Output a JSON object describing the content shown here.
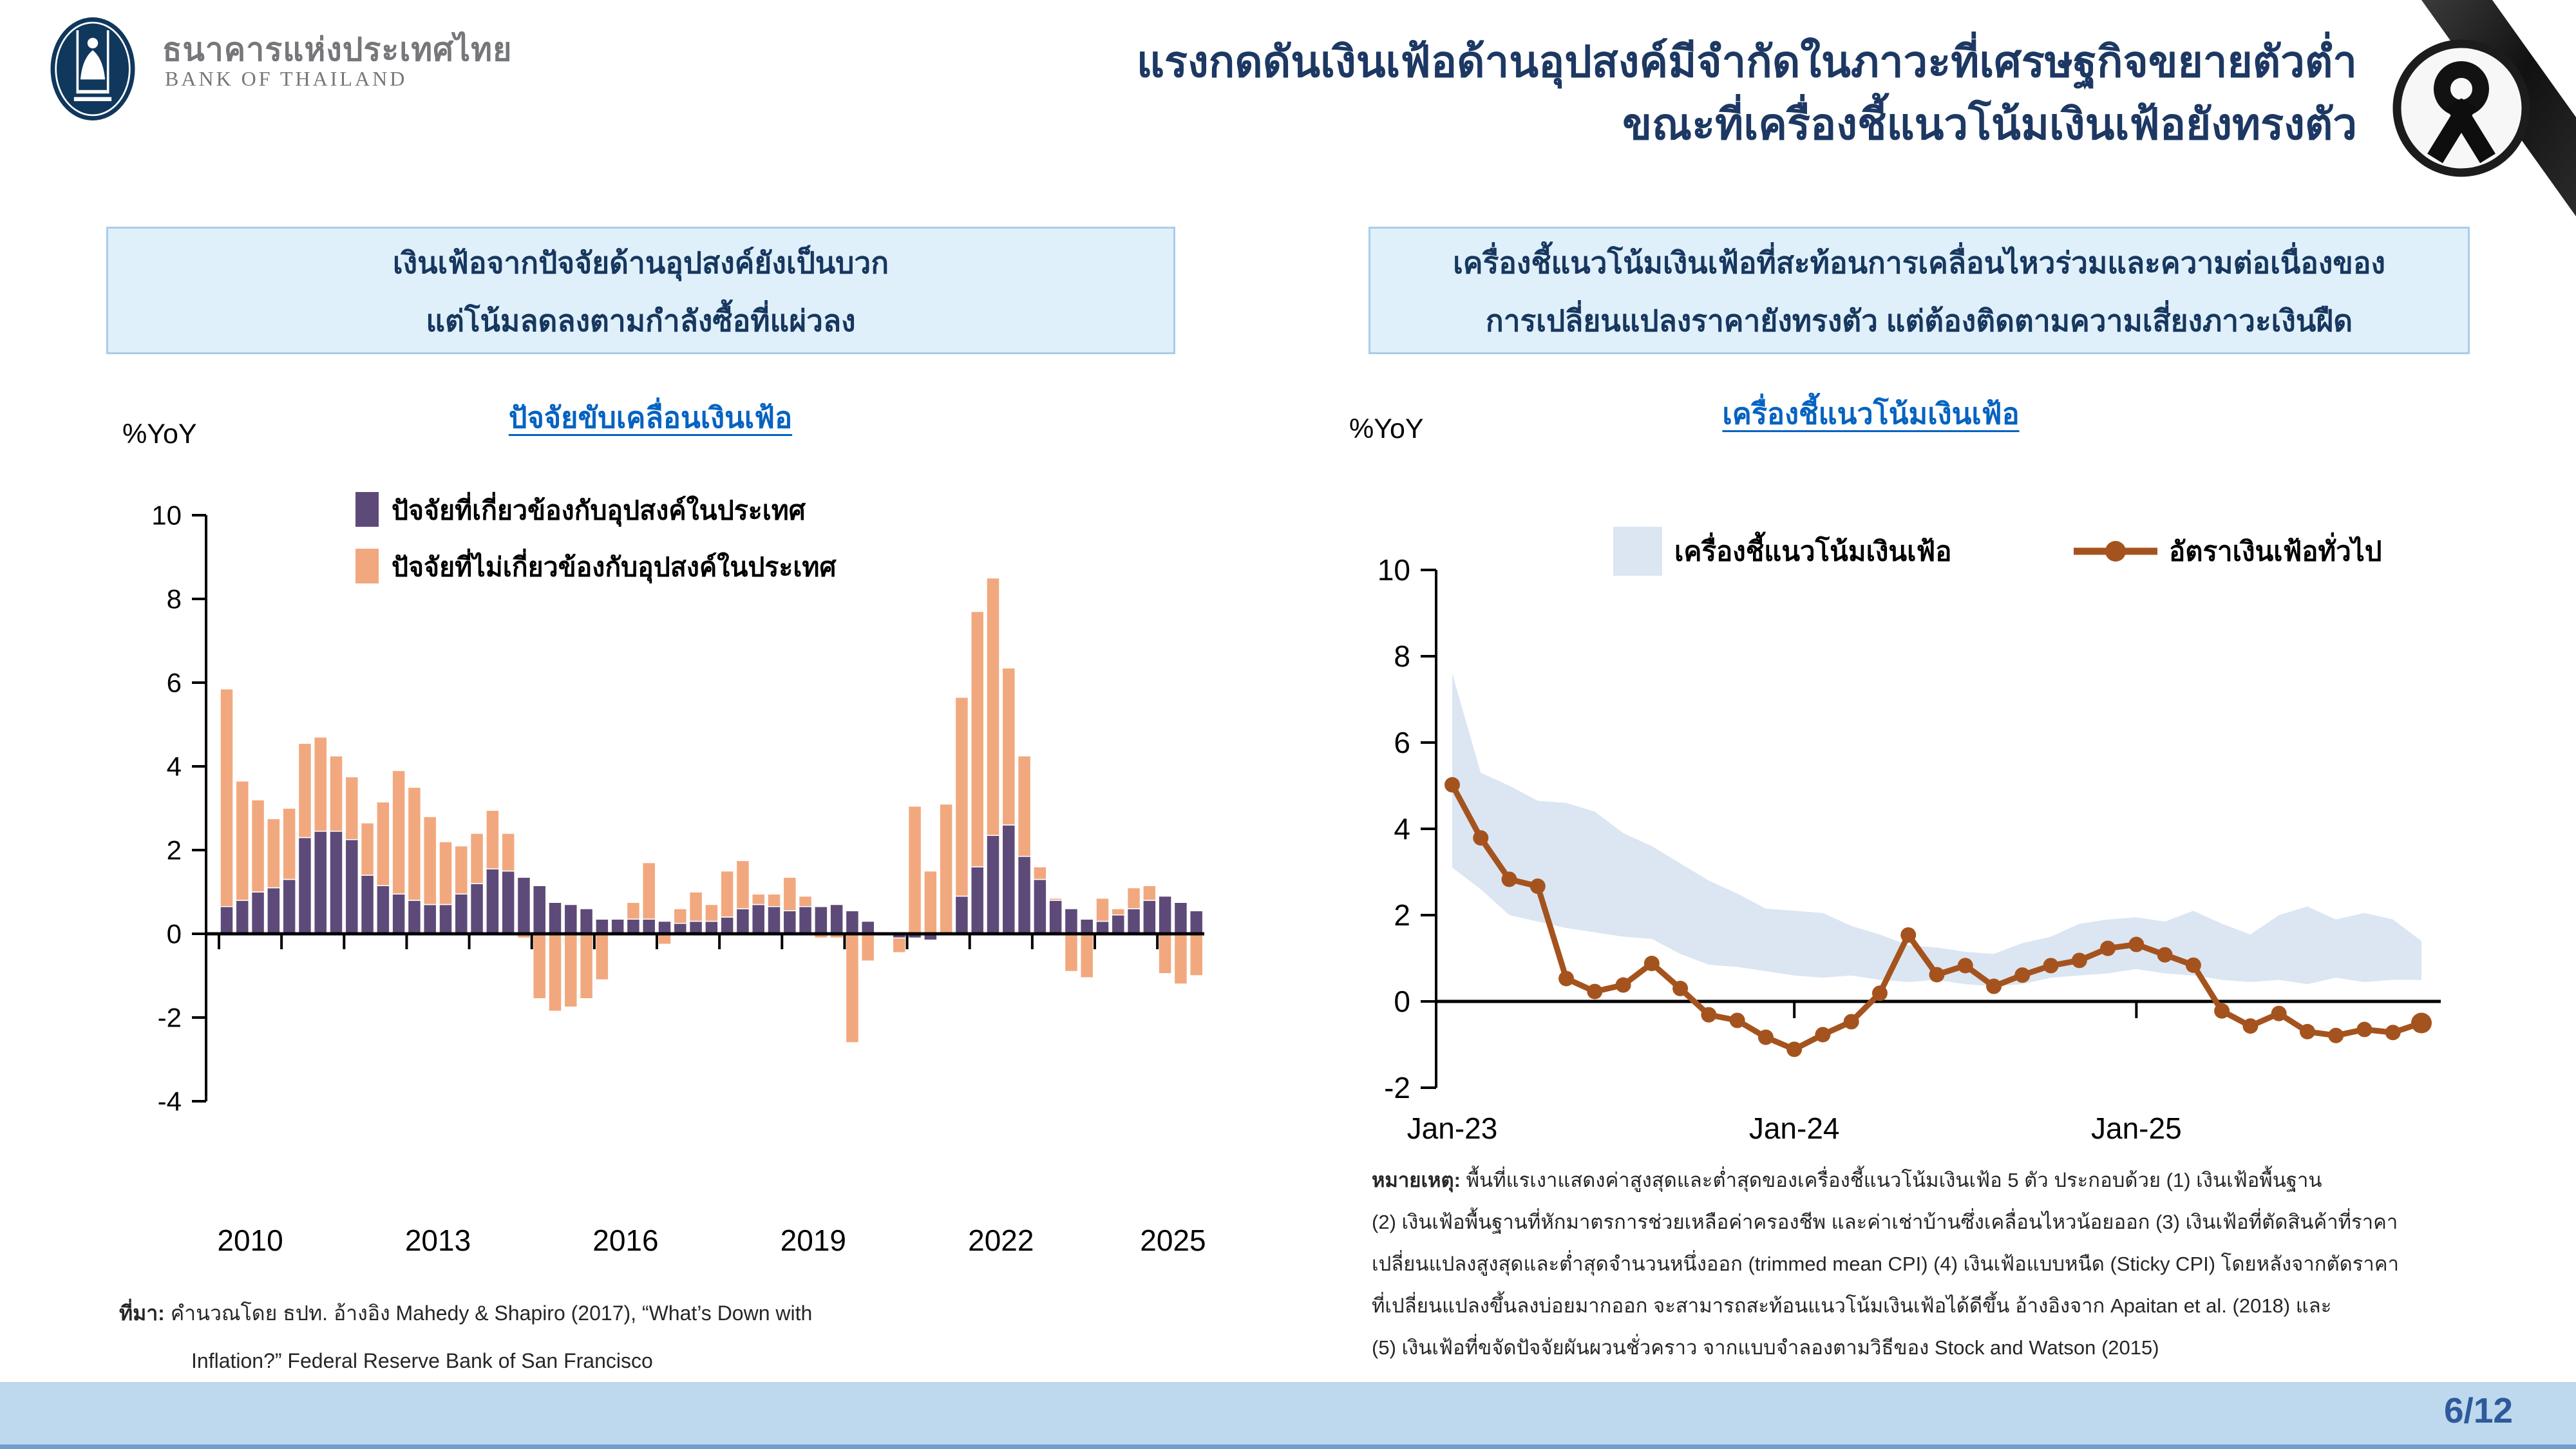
{
  "logo": {
    "thai": "ธนาคารแห่งประเทศไทย",
    "eng": "BANK OF THAILAND"
  },
  "header": {
    "title_line1": "แรงกดดันเงินเฟ้อด้านอุปสงค์มีจำกัดในภาวะที่เศรษฐกิจขยายตัวต่ำ",
    "title_line2": "ขณะที่เครื่องชี้แนวโน้มเงินเฟ้อยังทรงตัว"
  },
  "left_panel": {
    "headline_line1": "เงินเฟ้อจากปัจจัยด้านอุปสงค์ยังเป็นบวก",
    "headline_line2": "แต่โน้มลดลงตามกำลังซื้อที่แผ่วลง",
    "chart_title": "ปัจจัยขับเคลื่อนเงินเฟ้อ",
    "unit": "%YoY",
    "source_label": "ที่มา:",
    "source_line1": "คำนวณโดย ธปท. อ้างอิง Mahedy & Shapiro (2017), “What’s Down with",
    "source_line2": "Inflation?” Federal Reserve Bank of San Francisco"
  },
  "right_panel": {
    "headline_line1": "เครื่องชี้แนวโน้มเงินเฟ้อที่สะท้อนการเคลื่อนไหวร่วมและความต่อเนื่องของ",
    "headline_line2": "การเปลี่ยนแปลงราคายังทรงตัว แต่ต้องติดตามความเสี่ยงภาวะเงินฝืด",
    "chart_title": "เครื่องชี้แนวโน้มเงินเฟ้อ",
    "unit": "%YoY",
    "note_label": "หมายเหตุ:",
    "note_lines": [
      "พื้นที่แรเงาแสดงค่าสูงสุดและต่ำสุดของเครื่องชี้แนวโน้มเงินเฟ้อ 5 ตัว ประกอบด้วย (1) เงินเฟ้อพื้นฐาน",
      "(2) เงินเฟ้อพื้นฐานที่หักมาตรการช่วยเหลือค่าครองชีพ และค่าเช่าบ้านซึ่งเคลื่อนไหวน้อยออก (3) เงินเฟ้อที่ตัดสินค้าที่ราคา",
      "เปลี่ยนแปลงสูงสุดและต่ำสุดจำนวนหนึ่งออก (trimmed mean CPI) (4) เงินเฟ้อแบบหนืด (Sticky CPI) โดยหลังจากตัดราคา",
      "ที่เปลี่ยนแปลงขึ้นลงบ่อยมากออก จะสามารถสะท้อนแนวโน้มเงินเฟ้อได้ดีขึ้น อ้างอิงจาก Apaitan et al. (2018) และ",
      "(5) เงินเฟ้อที่ขจัดปัจจัยผันผวนชั่วคราว จากแบบจำลองตามวิธีของ Stock and Watson (2015)"
    ]
  },
  "footer": {
    "page": "6/12"
  },
  "colors": {
    "title_navy": "#1c3863",
    "box_fill": "#dff0fb",
    "box_border": "#a9cde9",
    "link_blue": "#0563c1",
    "demand_purple": "#5e4a78",
    "nondemand_orange": "#f2a87e",
    "headline_line_brown": "#a5531e",
    "band_blue": "#dbe6f2",
    "footer_blue": "#bed8ee",
    "page_num_blue": "#2e5a9b"
  },
  "chart_data": [
    {
      "id": "inflation-drivers",
      "type": "bar",
      "title": "ปัจจัยขับเคลื่อนเงินเฟ้อ",
      "ylabel": "%YoY",
      "ylim": [
        -4,
        10
      ],
      "yticks": [
        10,
        8,
        6,
        4,
        2,
        0,
        -2,
        -4
      ],
      "x_tick_labels": [
        "2010",
        "2013",
        "2016",
        "2019",
        "2022",
        "2025"
      ],
      "x_tick_positions": [
        1.5,
        13.5,
        25.5,
        37.5,
        49.5,
        60.5
      ],
      "categories": [
        "2010Q1",
        "2010Q2",
        "2010Q3",
        "2010Q4",
        "2011Q1",
        "2011Q2",
        "2011Q3",
        "2011Q4",
        "2012Q1",
        "2012Q2",
        "2012Q3",
        "2012Q4",
        "2013Q1",
        "2013Q2",
        "2013Q3",
        "2013Q4",
        "2014Q1",
        "2014Q2",
        "2014Q3",
        "2014Q4",
        "2015Q1",
        "2015Q2",
        "2015Q3",
        "2015Q4",
        "2016Q1",
        "2016Q2",
        "2016Q3",
        "2016Q4",
        "2017Q1",
        "2017Q2",
        "2017Q3",
        "2017Q4",
        "2018Q1",
        "2018Q2",
        "2018Q3",
        "2018Q4",
        "2019Q1",
        "2019Q2",
        "2019Q3",
        "2019Q4",
        "2020Q1",
        "2020Q2",
        "2020Q3",
        "2020Q4",
        "2021Q1",
        "2021Q2",
        "2021Q3",
        "2021Q4",
        "2022Q1",
        "2022Q2",
        "2022Q3",
        "2022Q4",
        "2023Q1",
        "2023Q2",
        "2023Q3",
        "2023Q4",
        "2024Q1",
        "2024Q2",
        "2024Q3",
        "2024Q4",
        "2025Q1",
        "2025Q2",
        "2025Q3"
      ],
      "series": [
        {
          "name": "ปัจจัยที่เกี่ยวข้องกับอุปสงค์ในประเทศ",
          "color": "#5e4a78",
          "values": [
            0.65,
            0.8,
            1.0,
            1.1,
            1.3,
            2.3,
            2.45,
            2.45,
            2.25,
            1.4,
            1.15,
            0.95,
            0.8,
            0.7,
            0.7,
            0.95,
            1.2,
            1.55,
            1.5,
            1.35,
            1.15,
            0.75,
            0.7,
            0.6,
            0.35,
            0.35,
            0.35,
            0.35,
            0.3,
            0.25,
            0.3,
            0.3,
            0.4,
            0.6,
            0.7,
            0.65,
            0.55,
            0.65,
            0.65,
            0.7,
            0.55,
            0.3,
            -0.05,
            -0.1,
            -0.1,
            -0.15,
            0.0,
            0.9,
            1.6,
            2.35,
            2.6,
            1.85,
            1.3,
            0.8,
            0.6,
            0.35,
            0.3,
            0.45,
            0.6,
            0.8,
            0.9,
            0.75,
            0.55
          ]
        },
        {
          "name": "ปัจจัยที่ไม่เกี่ยวข้องกับอุปสงค์ในประเทศ",
          "color": "#f2a87e",
          "values": [
            5.2,
            2.85,
            2.2,
            1.65,
            1.7,
            2.25,
            2.25,
            1.8,
            1.5,
            1.25,
            2.0,
            2.95,
            2.7,
            2.1,
            1.5,
            1.15,
            1.2,
            1.4,
            0.9,
            -0.1,
            -1.55,
            -1.85,
            -1.75,
            -1.55,
            -1.1,
            0.0,
            0.4,
            1.35,
            -0.25,
            0.35,
            0.7,
            0.4,
            1.1,
            1.15,
            0.25,
            0.3,
            0.8,
            0.25,
            -0.1,
            -0.1,
            -2.6,
            -0.65,
            0.0,
            -0.35,
            3.05,
            1.5,
            3.1,
            4.75,
            6.1,
            6.15,
            3.75,
            2.4,
            0.3,
            0.05,
            -0.9,
            -1.05,
            0.55,
            0.15,
            0.5,
            0.35,
            -0.95,
            -1.2,
            -1.0
          ]
        }
      ]
    },
    {
      "id": "inflation-trend-indicators",
      "type": "line",
      "title": "เครื่องชี้แนวโน้มเงินเฟ้อ",
      "ylabel": "%YoY",
      "ylim": [
        -2,
        10
      ],
      "yticks": [
        10,
        8,
        6,
        4,
        2,
        0,
        -2
      ],
      "x": [
        "Jan-23",
        "Feb-23",
        "Mar-23",
        "Apr-23",
        "May-23",
        "Jun-23",
        "Jul-23",
        "Aug-23",
        "Sep-23",
        "Oct-23",
        "Nov-23",
        "Dec-23",
        "Jan-24",
        "Feb-24",
        "Mar-24",
        "Apr-24",
        "May-24",
        "Jun-24",
        "Jul-24",
        "Aug-24",
        "Sep-24",
        "Oct-24",
        "Nov-24",
        "Dec-24",
        "Jan-25",
        "Feb-25",
        "Mar-25",
        "Apr-25",
        "May-25",
        "Jun-25",
        "Jul-25",
        "Aug-25",
        "Sep-25",
        "Oct-25",
        "Nov-25"
      ],
      "x_tick_labels": [
        "Jan-23",
        "Jan-24",
        "Jan-25"
      ],
      "x_tick_index": [
        0,
        12,
        24
      ],
      "band": {
        "name": "เครื่องชี้แนวโน้มเงินเฟ้อ",
        "color": "#dbe6f2",
        "upper": [
          7.6,
          5.3,
          5.0,
          4.65,
          4.6,
          4.4,
          3.9,
          3.6,
          3.2,
          2.8,
          2.5,
          2.15,
          2.1,
          2.05,
          1.75,
          1.55,
          1.3,
          1.25,
          1.15,
          1.1,
          1.35,
          1.5,
          1.8,
          1.9,
          1.95,
          1.85,
          2.1,
          1.8,
          1.55,
          2.0,
          2.2,
          1.9,
          2.05,
          1.9,
          1.4
        ],
        "lower": [
          3.1,
          2.6,
          2.0,
          1.85,
          1.7,
          1.6,
          1.5,
          1.45,
          1.1,
          0.85,
          0.8,
          0.7,
          0.6,
          0.55,
          0.6,
          0.5,
          0.45,
          0.5,
          0.4,
          0.35,
          0.4,
          0.55,
          0.6,
          0.65,
          0.75,
          0.65,
          0.6,
          0.5,
          0.45,
          0.5,
          0.4,
          0.55,
          0.45,
          0.5,
          0.5
        ]
      },
      "line": {
        "name": "อัตราเงินเฟ้อทั่วไป",
        "color": "#a5531e",
        "values": [
          5.02,
          3.79,
          2.83,
          2.67,
          0.53,
          0.23,
          0.38,
          0.88,
          0.3,
          -0.31,
          -0.44,
          -0.83,
          -1.11,
          -0.77,
          -0.47,
          0.19,
          1.54,
          0.62,
          0.83,
          0.35,
          0.61,
          0.83,
          0.95,
          1.23,
          1.32,
          1.08,
          0.84,
          -0.22,
          -0.57,
          -0.28,
          -0.7,
          -0.79,
          -0.65,
          -0.72,
          -0.5
        ]
      }
    }
  ]
}
